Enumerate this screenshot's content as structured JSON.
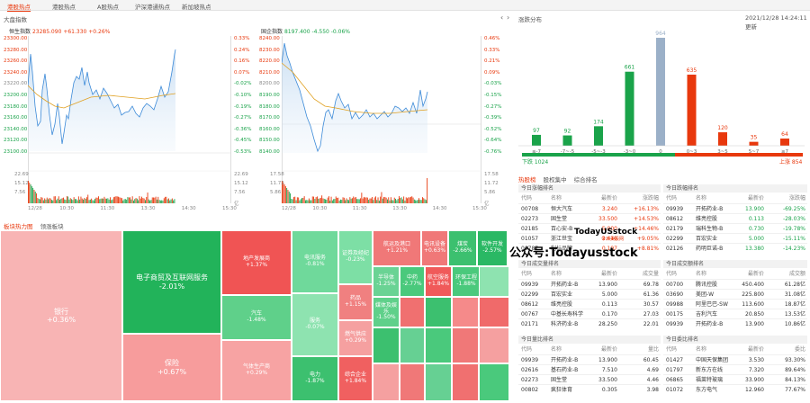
{
  "nav": {
    "tabs": [
      "港股热点",
      "港股热点",
      "A股热点",
      "沪深港通热点",
      "新加坡热点"
    ]
  },
  "market": {
    "title": "大盘指数",
    "date": "2021/12/28",
    "time": "14:24:11",
    "refresh": "更新"
  },
  "hsi": {
    "name": "恒生指数",
    "last": "23285.090",
    "chg": "+61.330",
    "pct": "+0.26%",
    "y_labels": [
      "23300.00",
      "23280.00",
      "23260.00",
      "23240.00",
      "23220.00",
      "23200.00",
      "23180.00",
      "23160.00",
      "23140.00",
      "23120.00",
      "23100.00"
    ],
    "pct_labels": [
      "0.33%",
      "0.24%",
      "0.16%",
      "0.07%",
      "-0.02%",
      "-0.10%",
      "-0.19%",
      "-0.27%",
      "-0.36%",
      "-0.45%",
      "-0.53%"
    ],
    "vol_labels": [
      "22.69",
      "15.12",
      "7.56"
    ],
    "vol_unit": "亿",
    "times": [
      "12/28",
      "10:30",
      "11:30",
      "13:30",
      "14:30",
      "15:30"
    ]
  },
  "gqi": {
    "name": "国企指数",
    "last": "8197.400",
    "chg": "-4.550",
    "pct": "-0.06%",
    "y_labels": [
      "8240.00",
      "8230.00",
      "8220.00",
      "8210.00",
      "8200.00",
      "8190.00",
      "8180.00",
      "8170.00",
      "8160.00",
      "8150.00",
      "8140.00"
    ],
    "pct_labels": [
      "0.46%",
      "0.33%",
      "0.21%",
      "0.09%",
      "-0.03%",
      "-0.15%",
      "-0.27%",
      "-0.39%",
      "-0.52%",
      "-0.64%",
      "-0.76%"
    ],
    "vol_labels": [
      "17.58",
      "11.72",
      "5.86"
    ],
    "vol_unit": "亿",
    "times": [
      "12/28",
      "10:30",
      "11:30",
      "13:30",
      "14:30",
      "15:30"
    ]
  },
  "heatmap": {
    "tabs": [
      "板块热力图",
      "领涨板块"
    ],
    "tiles": [
      {
        "n": "银行",
        "p": "+0.36%"
      },
      {
        "n": "电子商贸及互联网服务",
        "p": "-2.01%"
      },
      {
        "n": "保险",
        "p": "+0.67%"
      },
      {
        "n": "地产发展商",
        "p": "+1.37%"
      },
      {
        "n": "汽车",
        "p": "-1.48%"
      },
      {
        "n": "气体生产商",
        "p": "+0.29%"
      },
      {
        "n": "电讯服务",
        "p": "-0.81%"
      },
      {
        "n": "服务",
        "p": "-0.07%"
      },
      {
        "n": "电力",
        "p": "-1.87%"
      },
      {
        "n": "证券及经纪",
        "p": "-0.23%"
      },
      {
        "n": "药品",
        "p": "+1.15%"
      },
      {
        "n": "燃气供应",
        "p": "+0.29%"
      },
      {
        "n": "综合企业",
        "p": "+1.84%"
      },
      {
        "n": "航运及港口",
        "p": "+1.21%"
      },
      {
        "n": "半导体",
        "p": "-1.25%"
      },
      {
        "n": "电讯设备",
        "p": "+0.63%"
      },
      {
        "n": "媒体及娱乐",
        "p": "-1.50%"
      },
      {
        "n": "中药",
        "p": "-2.77%"
      },
      {
        "n": "航空服务",
        "p": "+1.84%"
      },
      {
        "n": "环保工程",
        "p": "-1.88%"
      },
      {
        "n": "煤炭",
        "p": "-2.66%"
      },
      {
        "n": "软件开发",
        "p": "-2.57%"
      }
    ]
  },
  "dist": {
    "title": "涨跌分布",
    "bars": [
      {
        "cat": "≤-7",
        "v": 97
      },
      {
        "cat": "-7~-5",
        "v": 92
      },
      {
        "cat": "-5~-3",
        "v": 174
      },
      {
        "cat": "-3~0",
        "v": 661
      },
      {
        "cat": "0",
        "v": 964
      },
      {
        "cat": "0~3",
        "v": 635
      },
      {
        "cat": "3~5",
        "v": 120
      },
      {
        "cat": "5~7",
        "v": 35
      },
      {
        "cat": "≥7",
        "v": 64
      }
    ],
    "down": "下跌 1024",
    "up": "上涨 854"
  },
  "hot": {
    "tabs": [
      "热股榜",
      "股权集中",
      "综合排名"
    ],
    "gain": {
      "title": "今日涨幅排名",
      "cols": [
        "代码",
        "名称",
        "最新价",
        "涨跌幅"
      ],
      "rows": [
        [
          "00708",
          "恒大汽车",
          "3.240",
          "+16.13%"
        ],
        [
          "02273",
          "固生堂",
          "33.500",
          "+14.53%"
        ],
        [
          "02185",
          "百心安-B",
          "5.000",
          "+14.46%"
        ],
        [
          "01057",
          "浙江世宝",
          "2.410",
          "+9.05%"
        ],
        [
          "00787",
          "利标品牌",
          "0.197",
          "+8.81%"
        ]
      ]
    },
    "lose": {
      "title": "今日跌幅排名",
      "cols": [
        "代码",
        "名称",
        "最新价",
        "涨跌幅"
      ],
      "rows": [
        [
          "09939",
          "开拓药业-B",
          "13.900",
          "-69.25%"
        ],
        [
          "08612",
          "维亮控股",
          "0.113",
          "-28.03%"
        ],
        [
          "02179",
          "瑞科生物-B",
          "0.730",
          "-19.78%"
        ],
        [
          "02299",
          "百宏实业",
          "5.000",
          "-15.11%"
        ],
        [
          "02126",
          "药明巨诺-B",
          "13.380",
          "-14.23%"
        ]
      ]
    },
    "vol": {
      "title": "今日成交量排名",
      "cols": [
        "代码",
        "名称",
        "最新价",
        "成交量"
      ],
      "rows": [
        [
          "09939",
          "开拓药业-B",
          "13.900",
          "69.78"
        ],
        [
          "02299",
          "百宏实业",
          "5.000",
          "61.36"
        ],
        [
          "08612",
          "维亮控股",
          "0.113",
          "30.57"
        ],
        [
          "00767",
          "中基长寿科学",
          "0.170",
          "27.03"
        ],
        [
          "02171",
          "科济药业-B",
          "28.250",
          "22.01"
        ]
      ]
    },
    "amt": {
      "title": "今日成交额排名",
      "cols": [
        "代码",
        "名称",
        "最新价",
        "成交额"
      ],
      "rows": [
        [
          "00700",
          "腾讯控股",
          "450.400",
          "61.28亿"
        ],
        [
          "03690",
          "美团-W",
          "225.800",
          "31.08亿"
        ],
        [
          "09988",
          "阿里巴巴-SW",
          "113.600",
          "18.87亿"
        ],
        [
          "00175",
          "吉利汽车",
          "20.850",
          "13.53亿"
        ],
        [
          "09939",
          "开拓药业-B",
          "13.900",
          "10.86亿"
        ]
      ]
    },
    "ratio": {
      "title": "今日量比排名",
      "cols": [
        "代码",
        "名称",
        "最新价",
        "量比"
      ],
      "rows": [
        [
          "09939",
          "开拓药业-B",
          "13.900",
          "60.45"
        ],
        [
          "02616",
          "基石药业-B",
          "7.510",
          "4.69"
        ],
        [
          "02273",
          "固生堂",
          "33.500",
          "4.46"
        ],
        [
          "00802",
          "疯狂体育",
          "0.305",
          "3.98"
        ]
      ]
    },
    "weibi": {
      "title": "今日委比排名",
      "cols": [
        "代码",
        "名称",
        "最新价",
        "委比"
      ],
      "rows": [
        [
          "01427",
          "中国天保集团",
          "3.530",
          "93.30%"
        ],
        [
          "01797",
          "新东方在线",
          "7.320",
          "89.64%"
        ],
        [
          "06865",
          "福莱特玻璃",
          "33.900",
          "84.13%"
        ],
        [
          "01072",
          "东方电气",
          "12.960",
          "77.67%"
        ]
      ]
    }
  },
  "watermarks": [
    "TodayUSstock",
    "今日美股网",
    "公众号:Todayusstock"
  ],
  "colors": {
    "up": "#e8380d",
    "down": "#1aa34a",
    "heatRed": "#f25a5a",
    "heatGreen": "#24b45a"
  }
}
